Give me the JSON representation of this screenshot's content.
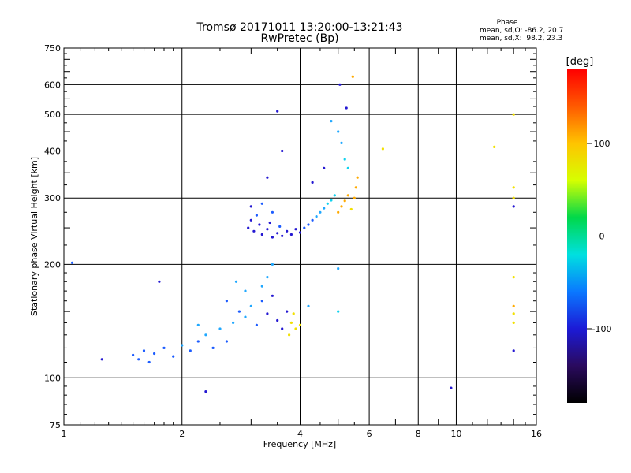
{
  "chart_data": {
    "type": "scatter",
    "title": "Tromsø 20171011 13:20:00-13:21:43",
    "subtitle": "RwPretec (Bp)",
    "xlabel": "Frequency [MHz]",
    "ylabel": "Stationary phase Virtual Height [km]",
    "x_scale": "log",
    "y_scale": "log",
    "xlim": [
      1,
      16
    ],
    "ylim": [
      75,
      750
    ],
    "x_ticks": [
      1,
      2,
      4,
      6,
      8,
      10,
      16
    ],
    "y_ticks": [
      75,
      100,
      200,
      300,
      400,
      500,
      600,
      750
    ],
    "grid": true,
    "stats": {
      "heading": "Phase",
      "line_o": "mean, sd,O: -86.2, 20.7",
      "line_x": "mean, sd,X:  98.2, 23.3"
    },
    "colorbar": {
      "label": "[deg]",
      "range": [
        -180,
        180
      ],
      "ticks": [
        100,
        0,
        -100
      ],
      "colors": [
        "#000000",
        "#2a0a5e",
        "#1c1ad6",
        "#0a78ff",
        "#00e0e0",
        "#00d84a",
        "#d6ff00",
        "#ffc400",
        "#ff5a00",
        "#ff0000"
      ]
    },
    "point_colors": {
      "dark_blue": "#2418d2",
      "mid_blue": "#1c5cff",
      "light_blue": "#20a8ff",
      "cyan": "#10d2ee",
      "yellow": "#f2e000",
      "orange": "#ffaa00"
    },
    "series": [
      {
        "name": "",
        "layer": "F",
        "points": [
          [
            2.95,
            250,
            "dark_blue"
          ],
          [
            3.0,
            262,
            "dark_blue"
          ],
          [
            3.05,
            245,
            "dark_blue"
          ],
          [
            3.1,
            270,
            "mid_blue"
          ],
          [
            3.15,
            255,
            "dark_blue"
          ],
          [
            3.2,
            240,
            "dark_blue"
          ],
          [
            3.3,
            248,
            "dark_blue"
          ],
          [
            3.35,
            258,
            "dark_blue"
          ],
          [
            3.4,
            236,
            "dark_blue"
          ],
          [
            3.5,
            242,
            "dark_blue"
          ],
          [
            3.55,
            252,
            "mid_blue"
          ],
          [
            3.6,
            238,
            "dark_blue"
          ],
          [
            3.7,
            245,
            "dark_blue"
          ],
          [
            3.8,
            240,
            "dark_blue"
          ],
          [
            3.9,
            248,
            "dark_blue"
          ],
          [
            4.0,
            243,
            "dark_blue"
          ],
          [
            4.1,
            250,
            "mid_blue"
          ],
          [
            4.2,
            255,
            "mid_blue"
          ],
          [
            4.3,
            262,
            "mid_blue"
          ],
          [
            4.4,
            268,
            "light_blue"
          ],
          [
            4.5,
            275,
            "light_blue"
          ],
          [
            4.6,
            282,
            "light_blue"
          ],
          [
            4.7,
            290,
            "cyan"
          ],
          [
            4.8,
            296,
            "cyan"
          ],
          [
            4.9,
            305,
            "cyan"
          ],
          [
            5.0,
            275,
            "orange"
          ],
          [
            5.1,
            285,
            "orange"
          ],
          [
            5.2,
            295,
            "orange"
          ],
          [
            5.3,
            305,
            "orange"
          ],
          [
            5.4,
            280,
            "yellow"
          ],
          [
            5.5,
            300,
            "orange"
          ],
          [
            5.55,
            320,
            "orange"
          ],
          [
            5.6,
            340,
            "orange"
          ],
          [
            5.3,
            360,
            "cyan"
          ],
          [
            5.2,
            380,
            "cyan"
          ],
          [
            5.1,
            420,
            "light_blue"
          ],
          [
            5.0,
            450,
            "light_blue"
          ],
          [
            5.25,
            520,
            "dark_blue"
          ],
          [
            3.0,
            285,
            "dark_blue"
          ],
          [
            3.2,
            290,
            "mid_blue"
          ],
          [
            3.4,
            275,
            "mid_blue"
          ],
          [
            3.3,
            340,
            "dark_blue"
          ],
          [
            3.5,
            510,
            "dark_blue"
          ],
          [
            3.6,
            400,
            "dark_blue"
          ],
          [
            4.3,
            330,
            "dark_blue"
          ],
          [
            4.6,
            360,
            "dark_blue"
          ],
          [
            4.8,
            480,
            "light_blue"
          ],
          [
            5.05,
            600,
            "dark_blue"
          ],
          [
            5.45,
            630,
            "orange"
          ],
          [
            6.5,
            405,
            "yellow"
          ]
        ]
      },
      {
        "name": "",
        "layer": "E",
        "points": [
          [
            1.5,
            115,
            "mid_blue"
          ],
          [
            1.55,
            112,
            "mid_blue"
          ],
          [
            1.6,
            118,
            "mid_blue"
          ],
          [
            1.65,
            110,
            "mid_blue"
          ],
          [
            1.7,
            116,
            "mid_blue"
          ],
          [
            1.8,
            120,
            "mid_blue"
          ],
          [
            1.9,
            114,
            "mid_blue"
          ],
          [
            2.0,
            122,
            "light_blue"
          ],
          [
            2.1,
            118,
            "mid_blue"
          ],
          [
            2.2,
            125,
            "mid_blue"
          ],
          [
            2.3,
            130,
            "light_blue"
          ],
          [
            2.4,
            120,
            "mid_blue"
          ],
          [
            2.5,
            135,
            "light_blue"
          ],
          [
            2.6,
            125,
            "mid_blue"
          ],
          [
            2.7,
            140,
            "light_blue"
          ],
          [
            2.8,
            150,
            "mid_blue"
          ],
          [
            2.9,
            145,
            "light_blue"
          ],
          [
            3.0,
            155,
            "light_blue"
          ],
          [
            3.1,
            138,
            "mid_blue"
          ],
          [
            3.2,
            160,
            "mid_blue"
          ],
          [
            3.3,
            148,
            "dark_blue"
          ],
          [
            3.4,
            165,
            "dark_blue"
          ],
          [
            3.5,
            142,
            "dark_blue"
          ],
          [
            3.6,
            135,
            "dark_blue"
          ],
          [
            3.7,
            150,
            "dark_blue"
          ],
          [
            3.8,
            140,
            "yellow"
          ],
          [
            3.9,
            135,
            "yellow"
          ],
          [
            4.0,
            138,
            "yellow"
          ],
          [
            3.85,
            148,
            "yellow"
          ],
          [
            3.75,
            130,
            "yellow"
          ],
          [
            3.3,
            185,
            "light_blue"
          ],
          [
            3.4,
            200,
            "light_blue"
          ],
          [
            3.2,
            175,
            "light_blue"
          ],
          [
            2.9,
            170,
            "light_blue"
          ],
          [
            2.75,
            180,
            "light_blue"
          ],
          [
            2.6,
            160,
            "mid_blue"
          ],
          [
            2.2,
            138,
            "light_blue"
          ],
          [
            1.75,
            180,
            "dark_blue"
          ],
          [
            1.25,
            112,
            "dark_blue"
          ],
          [
            1.05,
            202,
            "mid_blue"
          ],
          [
            2.3,
            92,
            "dark_blue"
          ],
          [
            5.0,
            150,
            "cyan"
          ],
          [
            5.0,
            195,
            "light_blue"
          ],
          [
            4.2,
            155,
            "light_blue"
          ],
          [
            9.7,
            94,
            "dark_blue"
          ]
        ]
      },
      {
        "name": "",
        "layer": "X",
        "points": [
          [
            14.0,
            500,
            "yellow"
          ],
          [
            14.0,
            320,
            "yellow"
          ],
          [
            14.0,
            300,
            "yellow"
          ],
          [
            14.0,
            285,
            "dark_blue"
          ],
          [
            14.0,
            185,
            "yellow"
          ],
          [
            14.0,
            155,
            "orange"
          ],
          [
            14.0,
            148,
            "yellow"
          ],
          [
            14.0,
            140,
            "yellow"
          ],
          [
            14.0,
            118,
            "dark_blue"
          ],
          [
            12.5,
            410,
            "yellow"
          ]
        ]
      }
    ]
  }
}
